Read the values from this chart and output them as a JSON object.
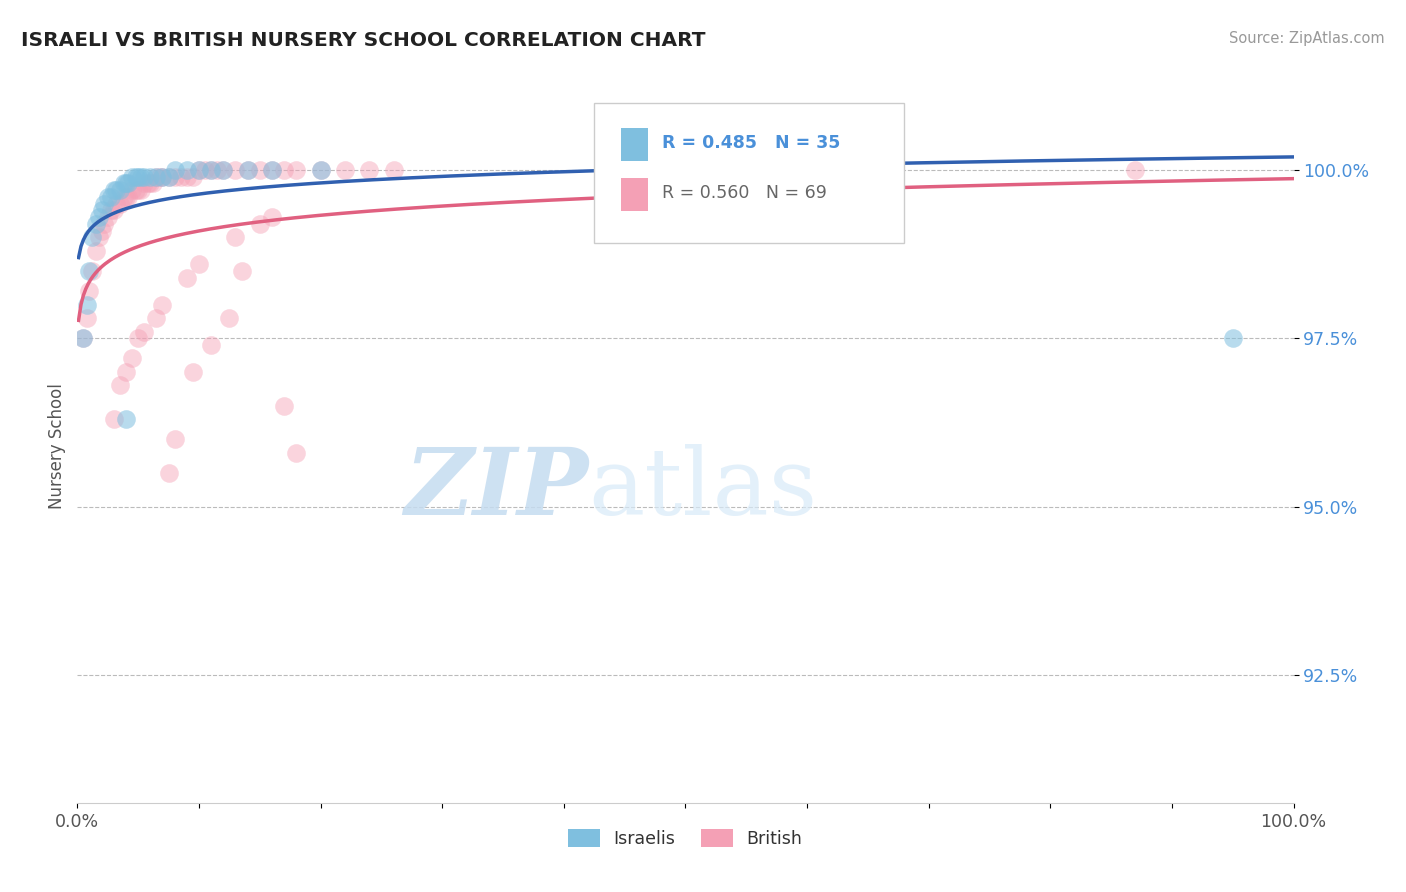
{
  "title": "ISRAELI VS BRITISH NURSERY SCHOOL CORRELATION CHART",
  "source": "Source: ZipAtlas.com",
  "ylabel": "Nursery School",
  "legend_israelis": "Israelis",
  "legend_british": "British",
  "r_israelis": 0.485,
  "n_israelis": 35,
  "r_british": 0.56,
  "n_british": 69,
  "color_israelis": "#7fbfdf",
  "color_british": "#f4a0b5",
  "color_line_israelis": "#3060b0",
  "color_line_british": "#e06080",
  "color_ytick": "#4a90d9",
  "background_color": "#ffffff",
  "xmin": 0.0,
  "xmax": 1.0,
  "ymin": 0.906,
  "ymax": 1.012,
  "yticks": [
    0.925,
    0.95,
    0.975,
    1.0
  ],
  "ytick_labels": [
    "92.5%",
    "95.0%",
    "97.5%",
    "100.0%"
  ],
  "israelis_x": [
    0.005,
    0.008,
    0.01,
    0.012,
    0.015,
    0.018,
    0.02,
    0.022,
    0.025,
    0.028,
    0.03,
    0.032,
    0.035,
    0.038,
    0.04,
    0.042,
    0.045,
    0.048,
    0.05,
    0.052,
    0.055,
    0.06,
    0.065,
    0.07,
    0.075,
    0.08,
    0.09,
    0.1,
    0.11,
    0.12,
    0.14,
    0.16,
    0.2,
    0.95,
    0.04
  ],
  "israelis_y": [
    0.975,
    0.98,
    0.985,
    0.99,
    0.992,
    0.993,
    0.994,
    0.995,
    0.996,
    0.996,
    0.997,
    0.997,
    0.997,
    0.998,
    0.998,
    0.998,
    0.999,
    0.999,
    0.999,
    0.999,
    0.999,
    0.999,
    0.999,
    0.999,
    0.999,
    1.0,
    1.0,
    1.0,
    1.0,
    1.0,
    1.0,
    1.0,
    1.0,
    0.975,
    0.963
  ],
  "british_x": [
    0.005,
    0.008,
    0.01,
    0.012,
    0.015,
    0.018,
    0.02,
    0.022,
    0.025,
    0.028,
    0.03,
    0.032,
    0.035,
    0.038,
    0.04,
    0.042,
    0.045,
    0.048,
    0.05,
    0.052,
    0.055,
    0.058,
    0.06,
    0.062,
    0.065,
    0.068,
    0.07,
    0.075,
    0.08,
    0.085,
    0.09,
    0.095,
    0.1,
    0.105,
    0.11,
    0.115,
    0.12,
    0.13,
    0.14,
    0.15,
    0.16,
    0.17,
    0.18,
    0.2,
    0.22,
    0.24,
    0.26,
    0.03,
    0.035,
    0.04,
    0.045,
    0.05,
    0.055,
    0.065,
    0.07,
    0.09,
    0.1,
    0.13,
    0.15,
    0.16,
    0.17,
    0.18,
    0.87,
    0.075,
    0.08,
    0.095,
    0.11,
    0.125,
    0.135
  ],
  "british_y": [
    0.975,
    0.978,
    0.982,
    0.985,
    0.988,
    0.99,
    0.991,
    0.992,
    0.993,
    0.994,
    0.994,
    0.995,
    0.995,
    0.996,
    0.996,
    0.996,
    0.997,
    0.997,
    0.997,
    0.997,
    0.998,
    0.998,
    0.998,
    0.998,
    0.999,
    0.999,
    0.999,
    0.999,
    0.999,
    0.999,
    0.999,
    0.999,
    1.0,
    1.0,
    1.0,
    1.0,
    1.0,
    1.0,
    1.0,
    1.0,
    1.0,
    1.0,
    1.0,
    1.0,
    1.0,
    1.0,
    1.0,
    0.963,
    0.968,
    0.97,
    0.972,
    0.975,
    0.976,
    0.978,
    0.98,
    0.984,
    0.986,
    0.99,
    0.992,
    0.993,
    0.965,
    0.958,
    1.0,
    0.955,
    0.96,
    0.97,
    0.974,
    0.978,
    0.985
  ]
}
